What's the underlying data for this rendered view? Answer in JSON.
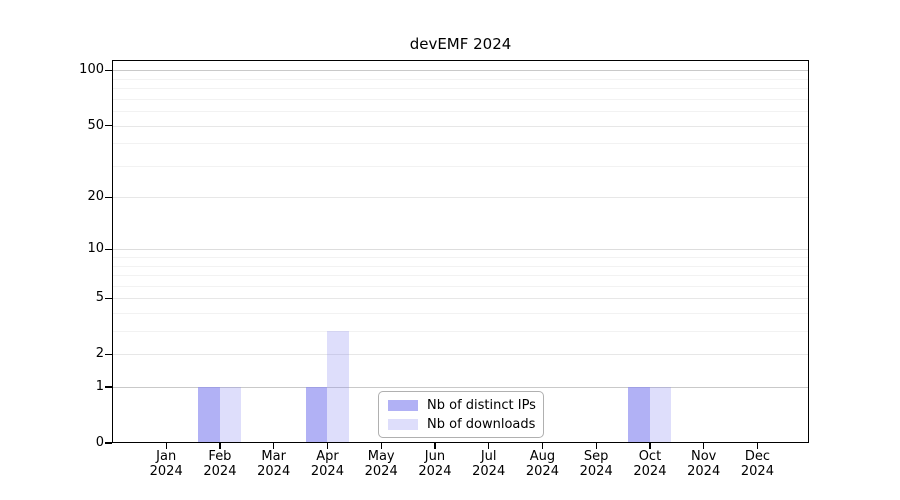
{
  "chart_data": {
    "type": "bar",
    "title": "devEMF 2024",
    "categories": [
      "Jan",
      "Feb",
      "Mar",
      "Apr",
      "May",
      "Jun",
      "Jul",
      "Aug",
      "Sep",
      "Oct",
      "Nov",
      "Dec"
    ],
    "x_year_label": "2024",
    "series": [
      {
        "name": "Nb of distinct IPs",
        "color": "rgba(136,136,240,0.66)",
        "values": [
          0,
          1,
          0,
          1,
          0,
          0,
          0,
          0,
          0,
          1,
          0,
          0
        ]
      },
      {
        "name": "Nb of downloads",
        "color": "rgba(136,136,240,0.28)",
        "values": [
          0,
          1,
          0,
          3,
          0,
          0,
          0,
          0,
          0,
          1,
          0,
          0
        ]
      }
    ],
    "y_scale": "log1p",
    "y_ticks": [
      0,
      1,
      2,
      5,
      10,
      20,
      50,
      100
    ],
    "y_minor_ticks": [
      3,
      4,
      6,
      7,
      8,
      9,
      30,
      40,
      60,
      70,
      80,
      90
    ],
    "ylim": [
      0,
      114
    ],
    "grid": true,
    "legend_position": "bottom-center",
    "xlabel": "",
    "ylabel": ""
  },
  "colors": {
    "grid_emphasis": "#c9c9c9",
    "grid_mid": "#dddddd",
    "grid_major": "#e7e7e7",
    "grid_minor": "#f2f2f2",
    "frame": "#000000",
    "text": "#000000"
  }
}
